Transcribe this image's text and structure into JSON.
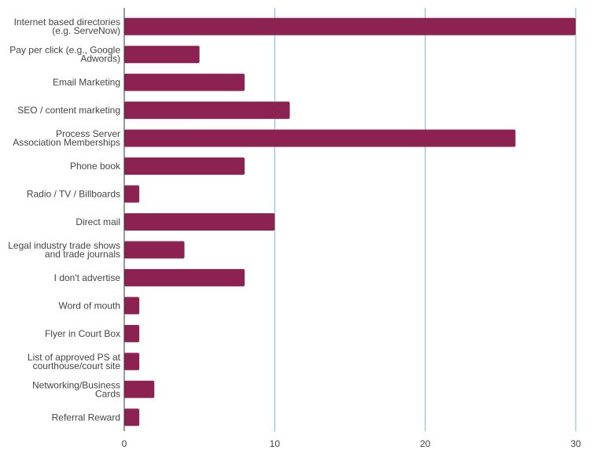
{
  "chart_data": {
    "type": "bar",
    "orientation": "horizontal",
    "title": "",
    "xlabel": "",
    "ylabel": "",
    "xlim": [
      0,
      30
    ],
    "xticks": [
      0,
      10,
      20,
      30
    ],
    "grid": true,
    "color": "#8b2252",
    "gridColor": "#7fb4c6",
    "categories": [
      "Internet based directories\n(e.g. ServeNow)",
      "Pay per click (e.g., Google\nAdwords)",
      "Email Marketing",
      "SEO / content marketing",
      "Process Server\nAssociation Memberships",
      "Phone book",
      "Radio / TV / Billboards",
      "Direct mail",
      "Legal industry trade shows\nand trade journals",
      "I don't advertise",
      "Word of mouth",
      "Flyer in Court Box",
      "List of approved PS at\ncourthouse/court site",
      "Networking/Business\nCards",
      "Referral Reward"
    ],
    "values": [
      30,
      5,
      8,
      11,
      26,
      8,
      1,
      10,
      4,
      8,
      1,
      1,
      1,
      2,
      1
    ]
  }
}
